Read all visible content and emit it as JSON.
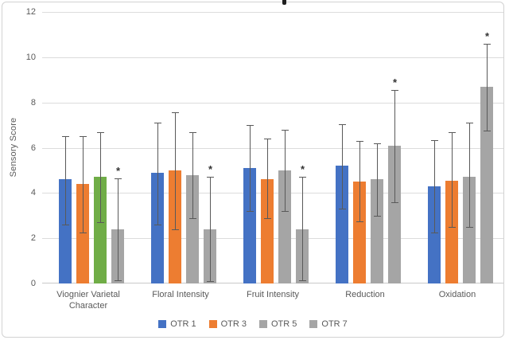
{
  "figure": {
    "type": "embedded-excel-chart",
    "note_visible_text": "chart is cropped at top; only a fragment of the title descender is visible"
  },
  "chart_data": {
    "type": "bar",
    "title": "",
    "ylabel": "Sensory Score",
    "xlabel": "",
    "ylim": [
      0,
      12
    ],
    "yticks": [
      0,
      2,
      4,
      6,
      8,
      10,
      12
    ],
    "grid": true,
    "legend_position": "bottom",
    "sig_marker": "*",
    "categories": [
      "Viognier Varietal Character",
      "Floral Intensity",
      "Fruit Intensity",
      "Reduction",
      "Oxidation"
    ],
    "series": [
      {
        "name": "OTR 1",
        "color": "#4472C4",
        "values": [
          4.6,
          4.9,
          5.1,
          5.2,
          4.3
        ],
        "err_min": [
          2.6,
          2.6,
          3.2,
          3.3,
          2.25
        ],
        "err_max": [
          6.5,
          7.1,
          7.0,
          7.05,
          6.35
        ],
        "sig": [
          false,
          false,
          false,
          false,
          false
        ]
      },
      {
        "name": "OTR 3",
        "color": "#ED7D31",
        "values": [
          4.4,
          5.0,
          4.6,
          4.5,
          4.55
        ],
        "err_min": [
          2.25,
          2.4,
          2.9,
          2.75,
          2.5
        ],
        "err_max": [
          6.5,
          7.55,
          6.4,
          6.3,
          6.7
        ],
        "sig": [
          false,
          false,
          false,
          false,
          false
        ]
      },
      {
        "name": "OTR 5",
        "color": "#A5A5A5",
        "point_colors": [
          "#70AD47",
          null,
          null,
          null,
          null
        ],
        "values": [
          4.7,
          4.8,
          5.0,
          4.6,
          4.7
        ],
        "err_min": [
          2.7,
          2.9,
          3.2,
          3.0,
          2.5
        ],
        "err_max": [
          6.7,
          6.7,
          6.8,
          6.2,
          7.1
        ],
        "sig": [
          false,
          false,
          false,
          false,
          false
        ]
      },
      {
        "name": "OTR 7",
        "color": "#A5A5A5",
        "values": [
          2.4,
          2.4,
          2.4,
          6.1,
          8.7
        ],
        "err_min": [
          0.15,
          0.1,
          0.15,
          3.6,
          6.75
        ],
        "err_max": [
          4.65,
          4.7,
          4.7,
          8.55,
          10.6
        ],
        "sig": [
          true,
          true,
          true,
          true,
          true
        ]
      }
    ],
    "colors": {
      "gridline": "#DCDCDC",
      "axis_line": "#C9C9C9",
      "error_bar": "#595959",
      "axis_text": "#595959",
      "sig_marker": "#333333"
    }
  }
}
